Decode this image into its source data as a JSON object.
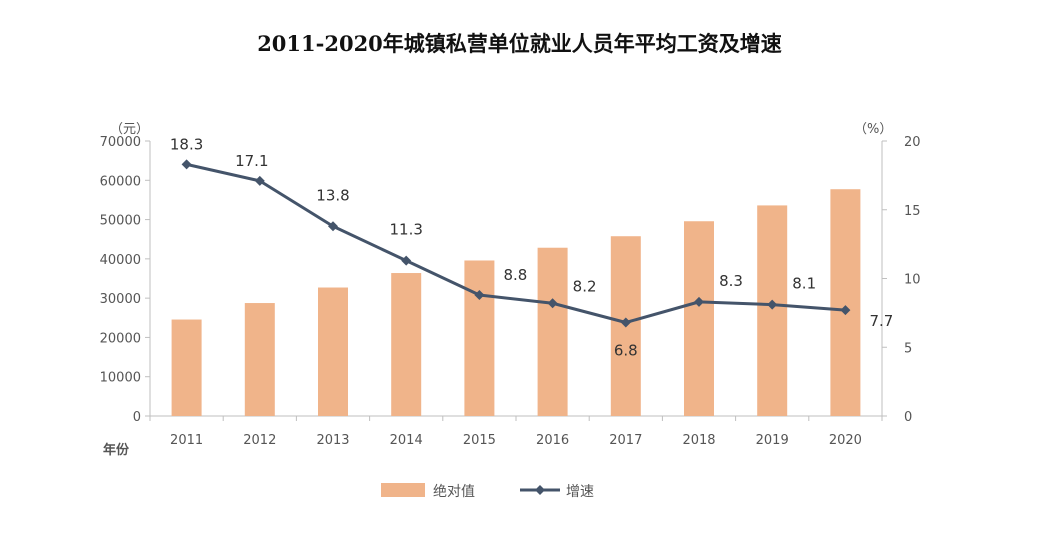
{
  "title": "2011-2020年城镇私营单位就业人员年平均工资及增速",
  "chart_data": {
    "type": "bar+line",
    "title": "2011-2020年城镇私营单位就业人员年平均工资及增速",
    "xlabel": "年份",
    "ylabel_left": "（元）",
    "ylabel_right": "（%）",
    "categories": [
      "2011",
      "2012",
      "2013",
      "2014",
      "2015",
      "2016",
      "2017",
      "2018",
      "2019",
      "2020"
    ],
    "y_left_range": [
      0,
      70000
    ],
    "y_left_ticks": [
      "0",
      "10000",
      "20000",
      "30000",
      "40000",
      "50000",
      "60000",
      "70000"
    ],
    "y_right_range": [
      0,
      20
    ],
    "y_right_ticks": [
      "0",
      "5",
      "10",
      "15",
      "20"
    ],
    "series": [
      {
        "name": "绝对值",
        "type": "bar",
        "axis": "left",
        "color": "#F0B48A",
        "values": [
          24556,
          28752,
          32706,
          36390,
          39589,
          42833,
          45761,
          49575,
          53604,
          57727
        ]
      },
      {
        "name": "增速",
        "type": "line",
        "axis": "right",
        "color": "#44546A",
        "values": [
          18.3,
          17.1,
          13.8,
          11.3,
          8.8,
          8.2,
          6.8,
          8.3,
          8.1,
          7.7
        ],
        "labels": [
          "18.3",
          "17.1",
          "13.8",
          "11.3",
          "8.8",
          "8.2",
          "6.8",
          "8.3",
          "8.1",
          "7.7"
        ]
      }
    ],
    "legend": [
      "绝对值",
      "增速"
    ],
    "legend_position": "bottom"
  }
}
